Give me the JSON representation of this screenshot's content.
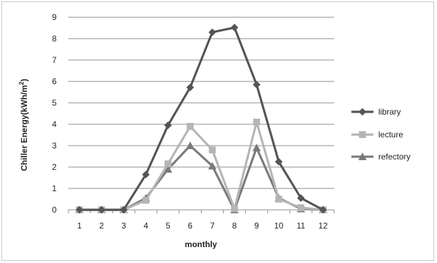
{
  "chart_data": {
    "type": "line",
    "xlabel": "monthly",
    "ylabel": "Chiller Energy(kWh/m²)",
    "ylabel_main": "Chiller Energy(kWh/m",
    "ylabel_sup": "2",
    "ylabel_close": ")",
    "ylim": [
      0,
      9
    ],
    "yticks": [
      0,
      1,
      2,
      3,
      4,
      5,
      6,
      7,
      8,
      9
    ],
    "x": [
      1,
      2,
      3,
      4,
      5,
      6,
      7,
      8,
      9,
      10,
      11,
      12
    ],
    "grid": "horizontal",
    "legend_position": "right",
    "series": [
      {
        "name": "library",
        "marker": "diamond",
        "color": "#555555",
        "values": [
          0,
          0,
          0,
          1.65,
          3.95,
          5.72,
          8.3,
          8.52,
          5.85,
          2.25,
          0.55,
          0
        ]
      },
      {
        "name": "lecture",
        "marker": "square",
        "color": "#b5b5b5",
        "values": [
          0,
          0,
          0,
          0.45,
          2.15,
          3.9,
          2.8,
          0.05,
          4.1,
          0.5,
          0.1,
          0
        ]
      },
      {
        "name": "refectory",
        "marker": "triangle",
        "color": "#7a7a7a",
        "values": [
          0,
          0,
          0,
          0.55,
          1.9,
          3.0,
          2.05,
          0,
          2.9,
          0.55,
          0.05,
          0
        ]
      }
    ]
  }
}
